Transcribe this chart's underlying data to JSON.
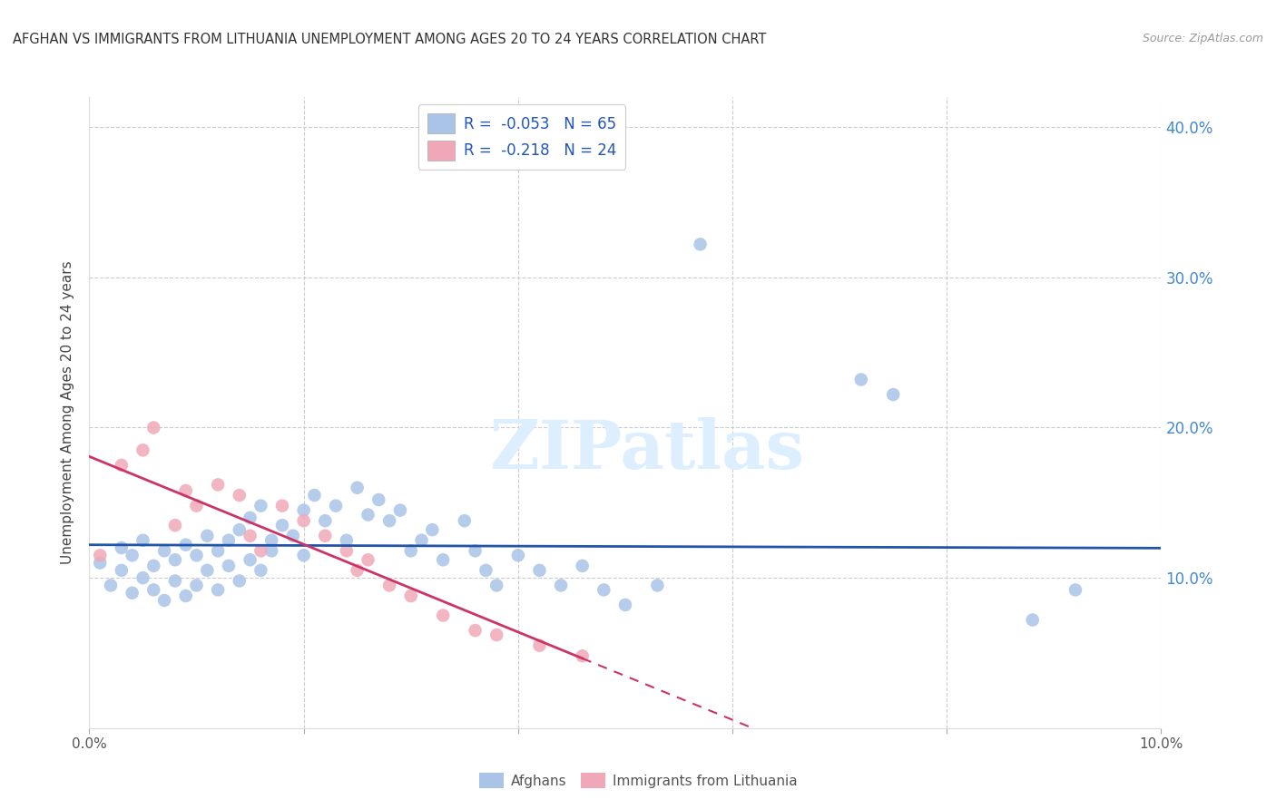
{
  "title": "AFGHAN VS IMMIGRANTS FROM LITHUANIA UNEMPLOYMENT AMONG AGES 20 TO 24 YEARS CORRELATION CHART",
  "source": "Source: ZipAtlas.com",
  "ylabel": "Unemployment Among Ages 20 to 24 years",
  "xlim": [
    0.0,
    0.1
  ],
  "ylim": [
    0.0,
    0.42
  ],
  "yticks": [
    0.0,
    0.1,
    0.2,
    0.3,
    0.4
  ],
  "ytick_labels": [
    "",
    "10.0%",
    "20.0%",
    "30.0%",
    "40.0%"
  ],
  "xtick_positions": [
    0.0,
    0.02,
    0.04,
    0.06,
    0.08,
    0.1
  ],
  "xtick_labels": [
    "0.0%",
    "",
    "",
    "",
    "",
    "10.0%"
  ],
  "legend_labels_bottom": [
    "Afghans",
    "Immigrants from Lithuania"
  ],
  "afghan_color": "#aac4e8",
  "lithuanian_color": "#f0a8b8",
  "trendline_afghan_color": "#2255aa",
  "trendline_lithuanian_color": "#cc3366",
  "watermark_text": "ZIPatlas",
  "watermark_color": "#ddeeff",
  "background_color": "#ffffff",
  "afghan_R": -0.053,
  "afghan_N": 65,
  "lithuanian_R": -0.218,
  "lithuanian_N": 24,
  "afghans_x": [
    0.001,
    0.002,
    0.003,
    0.003,
    0.004,
    0.004,
    0.005,
    0.005,
    0.006,
    0.006,
    0.007,
    0.007,
    0.008,
    0.008,
    0.009,
    0.009,
    0.01,
    0.01,
    0.011,
    0.011,
    0.012,
    0.012,
    0.013,
    0.013,
    0.014,
    0.014,
    0.015,
    0.015,
    0.016,
    0.016,
    0.017,
    0.017,
    0.018,
    0.019,
    0.02,
    0.02,
    0.021,
    0.022,
    0.023,
    0.024,
    0.025,
    0.026,
    0.027,
    0.028,
    0.029,
    0.03,
    0.031,
    0.032,
    0.033,
    0.035,
    0.036,
    0.037,
    0.038,
    0.04,
    0.042,
    0.044,
    0.046,
    0.048,
    0.05,
    0.053,
    0.057,
    0.072,
    0.075,
    0.088,
    0.092
  ],
  "afghans_y": [
    0.11,
    0.095,
    0.12,
    0.105,
    0.115,
    0.09,
    0.1,
    0.125,
    0.108,
    0.092,
    0.118,
    0.085,
    0.112,
    0.098,
    0.122,
    0.088,
    0.115,
    0.095,
    0.128,
    0.105,
    0.118,
    0.092,
    0.125,
    0.108,
    0.132,
    0.098,
    0.14,
    0.112,
    0.148,
    0.105,
    0.125,
    0.118,
    0.135,
    0.128,
    0.145,
    0.115,
    0.155,
    0.138,
    0.148,
    0.125,
    0.16,
    0.142,
    0.152,
    0.138,
    0.145,
    0.118,
    0.125,
    0.132,
    0.112,
    0.138,
    0.118,
    0.105,
    0.095,
    0.115,
    0.105,
    0.095,
    0.108,
    0.092,
    0.082,
    0.095,
    0.322,
    0.232,
    0.222,
    0.072,
    0.092
  ],
  "lithuanians_x": [
    0.001,
    0.003,
    0.005,
    0.006,
    0.008,
    0.009,
    0.01,
    0.012,
    0.014,
    0.015,
    0.016,
    0.018,
    0.02,
    0.022,
    0.024,
    0.025,
    0.026,
    0.028,
    0.03,
    0.033,
    0.036,
    0.038,
    0.042,
    0.046
  ],
  "lithuanians_y": [
    0.115,
    0.175,
    0.185,
    0.2,
    0.135,
    0.158,
    0.148,
    0.162,
    0.155,
    0.128,
    0.118,
    0.148,
    0.138,
    0.128,
    0.118,
    0.105,
    0.112,
    0.095,
    0.088,
    0.075,
    0.065,
    0.062,
    0.055,
    0.048
  ]
}
